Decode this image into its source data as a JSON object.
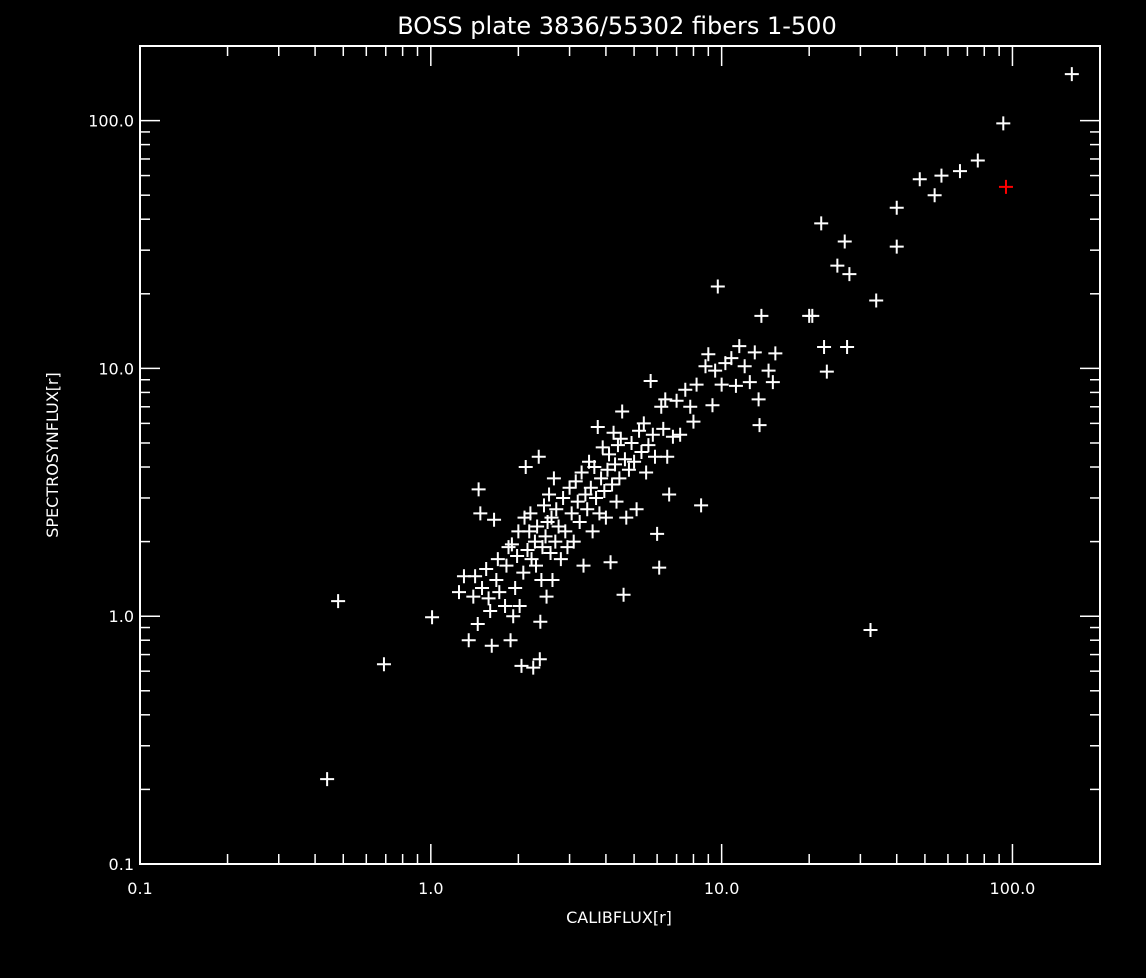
{
  "chart_data": {
    "type": "scatter",
    "title": "BOSS plate 3836/55302 fibers 1-500",
    "xlabel": "CALIBFLUX[r]",
    "ylabel": "SPECTROSYNFLUX[r]",
    "xscale": "log",
    "yscale": "log",
    "xlim": [
      0.1,
      200
    ],
    "ylim": [
      0.1,
      200
    ],
    "xticks": [
      {
        "value": 0.1,
        "label": "0.1"
      },
      {
        "value": 1,
        "label": "1.0"
      },
      {
        "value": 10,
        "label": "10.0"
      },
      {
        "value": 100,
        "label": "100.0"
      }
    ],
    "yticks": [
      {
        "value": 0.1,
        "label": "0.1"
      },
      {
        "value": 1,
        "label": "1.0"
      },
      {
        "value": 10,
        "label": "10.0"
      },
      {
        "value": 100,
        "label": "100.0"
      }
    ],
    "grid": false,
    "marker": "+",
    "background_color": "#000000",
    "point_color": "#ffffff",
    "highlight_color": "#ff0000",
    "series": [
      {
        "color": "#ffffff",
        "points": [
          [
            0.44,
            0.22
          ],
          [
            0.48,
            1.15
          ],
          [
            0.69,
            0.64
          ],
          [
            1.01,
            0.99
          ],
          [
            1.25,
            1.25
          ],
          [
            1.3,
            1.45
          ],
          [
            1.35,
            0.8
          ],
          [
            1.4,
            1.2
          ],
          [
            1.42,
            1.45
          ],
          [
            1.45,
            0.93
          ],
          [
            1.48,
            2.6
          ],
          [
            1.5,
            1.3
          ],
          [
            1.46,
            3.25
          ],
          [
            1.55,
            1.55
          ],
          [
            1.58,
            1.18
          ],
          [
            1.6,
            1.05
          ],
          [
            1.62,
            0.76
          ],
          [
            1.65,
            2.45
          ],
          [
            1.68,
            1.4
          ],
          [
            1.7,
            1.7
          ],
          [
            1.72,
            1.25
          ],
          [
            1.8,
            1.1
          ],
          [
            1.82,
            1.6
          ],
          [
            1.85,
            1.9
          ],
          [
            1.88,
            0.8
          ],
          [
            1.9,
            1.95
          ],
          [
            1.92,
            1.0
          ],
          [
            1.95,
            1.3
          ],
          [
            1.98,
            1.75
          ],
          [
            2.0,
            2.2
          ],
          [
            2.02,
            1.1
          ],
          [
            2.05,
            0.63
          ],
          [
            2.08,
            1.5
          ],
          [
            2.1,
            2.5
          ],
          [
            2.12,
            4.0
          ],
          [
            2.15,
            1.85
          ],
          [
            2.18,
            2.2
          ],
          [
            2.2,
            2.6
          ],
          [
            2.22,
            1.7
          ],
          [
            2.25,
            0.62
          ],
          [
            2.28,
            2.0
          ],
          [
            2.3,
            1.6
          ],
          [
            2.32,
            2.3
          ],
          [
            2.35,
            4.4
          ],
          [
            2.37,
            0.67
          ],
          [
            2.38,
            0.95
          ],
          [
            2.4,
            1.4
          ],
          [
            2.42,
            1.9
          ],
          [
            2.45,
            2.8
          ],
          [
            2.48,
            2.1
          ],
          [
            2.5,
            1.2
          ],
          [
            2.52,
            2.4
          ],
          [
            2.55,
            3.1
          ],
          [
            2.58,
            1.8
          ],
          [
            2.6,
            2.5
          ],
          [
            2.62,
            1.4
          ],
          [
            2.65,
            3.6
          ],
          [
            2.68,
            2.0
          ],
          [
            2.7,
            2.7
          ],
          [
            2.75,
            2.3
          ],
          [
            2.8,
            1.7
          ],
          [
            2.85,
            3.0
          ],
          [
            2.9,
            2.2
          ],
          [
            2.95,
            1.9
          ],
          [
            3.0,
            3.3
          ],
          [
            3.05,
            2.6
          ],
          [
            3.1,
            2.0
          ],
          [
            3.15,
            3.5
          ],
          [
            3.2,
            2.9
          ],
          [
            3.25,
            2.4
          ],
          [
            3.3,
            3.8
          ],
          [
            3.35,
            1.6
          ],
          [
            3.4,
            3.1
          ],
          [
            3.45,
            2.7
          ],
          [
            3.5,
            4.2
          ],
          [
            3.55,
            3.3
          ],
          [
            3.6,
            2.2
          ],
          [
            3.65,
            4.0
          ],
          [
            3.7,
            3.0
          ],
          [
            3.75,
            5.8
          ],
          [
            3.8,
            2.6
          ],
          [
            3.85,
            3.6
          ],
          [
            3.9,
            4.8
          ],
          [
            3.95,
            3.2
          ],
          [
            4.0,
            2.5
          ],
          [
            4.05,
            3.9
          ],
          [
            4.1,
            4.5
          ],
          [
            4.15,
            1.65
          ],
          [
            4.2,
            3.4
          ],
          [
            4.25,
            5.5
          ],
          [
            4.3,
            4.1
          ],
          [
            4.35,
            2.9
          ],
          [
            4.4,
            4.9
          ],
          [
            4.45,
            3.6
          ],
          [
            4.5,
            5.2
          ],
          [
            4.55,
            6.7
          ],
          [
            4.6,
            1.22
          ],
          [
            4.65,
            4.3
          ],
          [
            4.7,
            2.5
          ],
          [
            4.8,
            3.9
          ],
          [
            4.9,
            5.0
          ],
          [
            5.0,
            4.2
          ],
          [
            5.1,
            2.7
          ],
          [
            5.2,
            5.6
          ],
          [
            5.3,
            4.6
          ],
          [
            5.4,
            6.0
          ],
          [
            5.5,
            3.8
          ],
          [
            5.6,
            4.9
          ],
          [
            5.7,
            8.9
          ],
          [
            5.8,
            5.4
          ],
          [
            5.9,
            4.4
          ],
          [
            6.0,
            2.15
          ],
          [
            6.1,
            1.57
          ],
          [
            6.2,
            7.0
          ],
          [
            6.3,
            5.7
          ],
          [
            6.4,
            7.5
          ],
          [
            6.5,
            4.4
          ],
          [
            6.6,
            3.1
          ],
          [
            6.8,
            5.3
          ],
          [
            7.0,
            7.4
          ],
          [
            7.2,
            5.4
          ],
          [
            7.5,
            8.2
          ],
          [
            7.8,
            7.0
          ],
          [
            8.0,
            6.1
          ],
          [
            8.2,
            8.6
          ],
          [
            8.5,
            2.8
          ],
          [
            8.8,
            10.2
          ],
          [
            9.0,
            11.4
          ],
          [
            9.3,
            7.1
          ],
          [
            9.5,
            9.8
          ],
          [
            9.7,
            21.4
          ],
          [
            10.0,
            8.6
          ],
          [
            10.3,
            10.5
          ],
          [
            10.8,
            11.0
          ],
          [
            11.2,
            8.5
          ],
          [
            11.5,
            12.3
          ],
          [
            12.0,
            10.2
          ],
          [
            12.5,
            8.8
          ],
          [
            13.0,
            11.6
          ],
          [
            13.4,
            7.5
          ],
          [
            13.5,
            5.9
          ],
          [
            13.7,
            16.3
          ],
          [
            14.5,
            9.8
          ],
          [
            15.0,
            8.8
          ],
          [
            15.3,
            11.5
          ],
          [
            20.0,
            16.3
          ],
          [
            20.5,
            16.3
          ],
          [
            22.0,
            38.5
          ],
          [
            22.5,
            12.2
          ],
          [
            23.0,
            9.7
          ],
          [
            25.0,
            26.0
          ],
          [
            26.5,
            32.5
          ],
          [
            27.0,
            12.2
          ],
          [
            27.5,
            24.0
          ],
          [
            32.5,
            0.88
          ],
          [
            34.0,
            18.8
          ],
          [
            40.0,
            44.5
          ],
          [
            40.0,
            31.0
          ],
          [
            48.0,
            58.0
          ],
          [
            54.0,
            50.0
          ],
          [
            57.0,
            60.0
          ],
          [
            66.0,
            62.5
          ],
          [
            76.0,
            69.0
          ],
          [
            93.0,
            97.5
          ],
          [
            160.0,
            154.0
          ]
        ]
      },
      {
        "color": "#ff0000",
        "points": [
          [
            95.0,
            54.0
          ]
        ]
      }
    ]
  }
}
